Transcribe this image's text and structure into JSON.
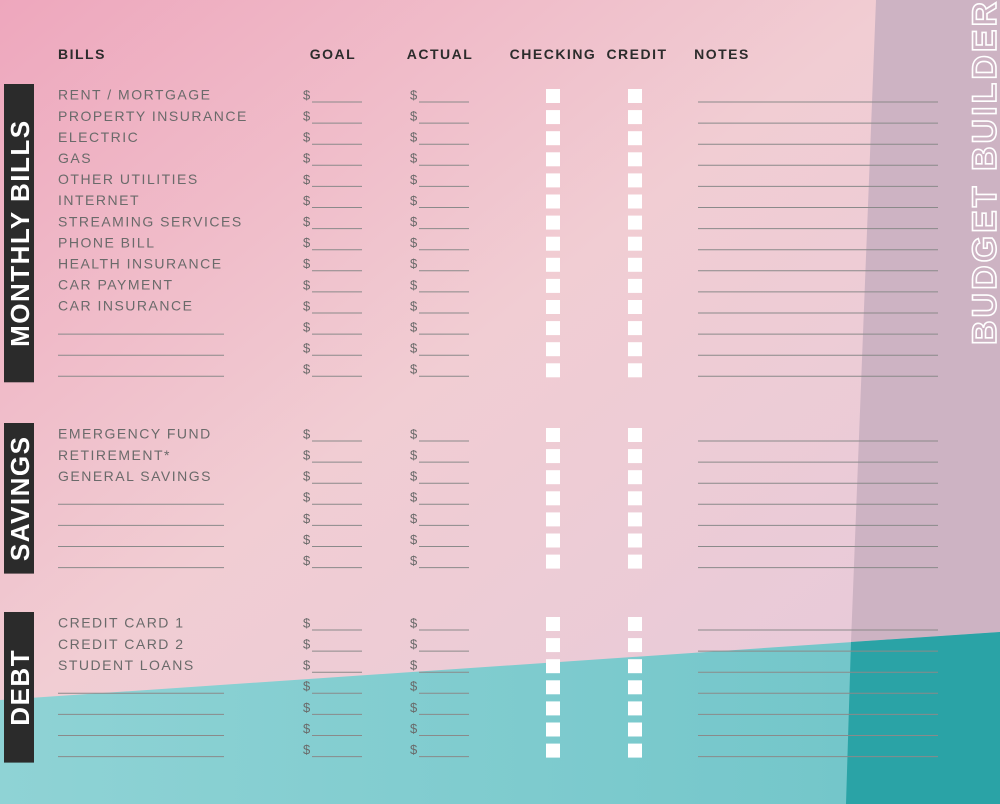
{
  "title": "BUDGET BUILDER",
  "currency": "$",
  "headers": [
    "BILLS",
    "GOAL",
    "ACTUAL",
    "CHECKING",
    "CREDIT",
    "NOTES"
  ],
  "sections": [
    {
      "label": "MONTHLY BILLS",
      "items": [
        "RENT / MORTGAGE",
        "PROPERTY INSURANCE",
        "ELECTRIC",
        "GAS",
        "OTHER UTILITIES",
        "INTERNET",
        "STREAMING SERVICES",
        "PHONE BILL",
        "HEALTH INSURANCE",
        "CAR PAYMENT",
        "CAR INSURANCE",
        null,
        null,
        null
      ]
    },
    {
      "label": "SAVINGS",
      "items": [
        "EMERGENCY FUND",
        "RETIREMENT*",
        "GENERAL SAVINGS",
        null,
        null,
        null,
        null
      ]
    },
    {
      "label": "DEBT",
      "items": [
        "CREDIT CARD 1",
        "CREDIT CARD 2",
        "STUDENT LOANS",
        null,
        null,
        null,
        null
      ]
    }
  ]
}
